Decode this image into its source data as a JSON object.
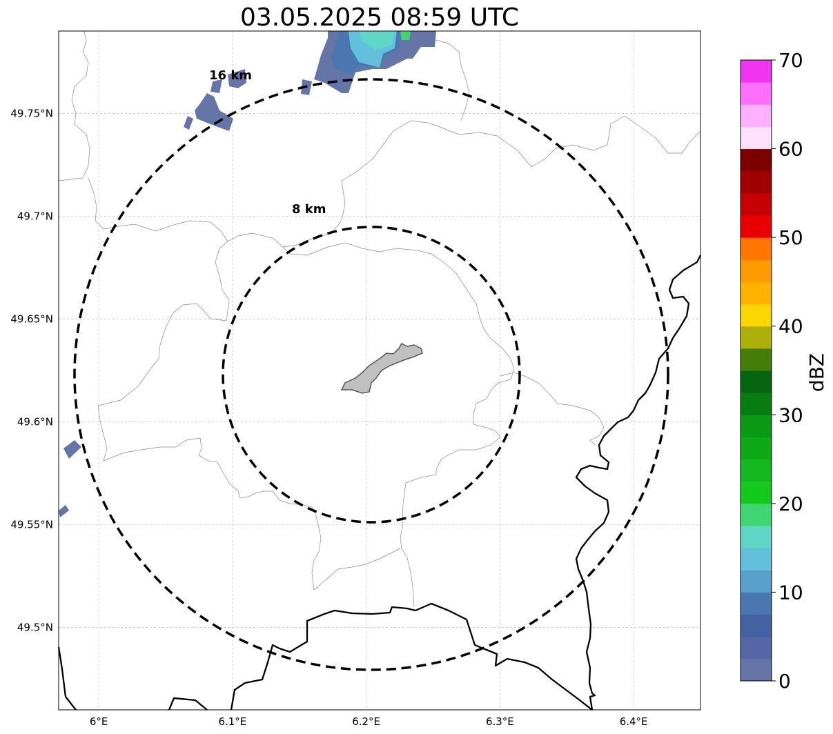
{
  "title": "03.05.2025 08:59 UTC",
  "map": {
    "lon_range": [
      5.97,
      6.45
    ],
    "lat_range": [
      49.46,
      49.79
    ],
    "lon_ticks": [
      6.0,
      6.1,
      6.2,
      6.3,
      6.4
    ],
    "lon_tick_labels": [
      "6°E",
      "6.1°E",
      "6.2°E",
      "6.3°E",
      "6.4°E"
    ],
    "lat_ticks": [
      49.75,
      49.7,
      49.65,
      49.6,
      49.55,
      49.5
    ],
    "lat_tick_labels": [
      "49.75°N",
      "49.7°N",
      "49.65°N",
      "49.6°N",
      "49.55°N",
      "49.5°N"
    ],
    "grid": true,
    "center": {
      "lon": 6.202,
      "lat": 49.623
    },
    "range_rings": [
      {
        "label": "8 km",
        "radius_km": 8
      },
      {
        "label": "16 km",
        "radius_km": 16
      }
    ]
  },
  "colorbar": {
    "label": "dBZ",
    "min": 0,
    "max": 70,
    "step": 2.5,
    "tick_values": [
      0,
      10,
      20,
      30,
      40,
      50,
      60,
      70
    ],
    "tick_labels": [
      "0",
      "10",
      "20",
      "30",
      "40",
      "50",
      "60",
      "70"
    ],
    "colors": [
      "#6575a8",
      "#5466a3",
      "#4461a2",
      "#4a77b0",
      "#58a0c9",
      "#62c0dc",
      "#5fd6c6",
      "#3fd672",
      "#12c91c",
      "#12b81d",
      "#0fa916",
      "#0a9914",
      "#077c10",
      "#056510",
      "#457d0a",
      "#adb00a",
      "#fdd600",
      "#ffb300",
      "#ff9a00",
      "#ff7700",
      "#e80000",
      "#c40000",
      "#a00000",
      "#7c0000",
      "#ffe0ff",
      "#ffb0ff",
      "#ff70ff",
      "#f035f0"
    ]
  },
  "colors": {
    "boundary": "#000000",
    "admin_lines": "#888888",
    "site_fill": "#c0c0c0",
    "site_outline": "#555555",
    "echo_weak": "#6575a8"
  }
}
